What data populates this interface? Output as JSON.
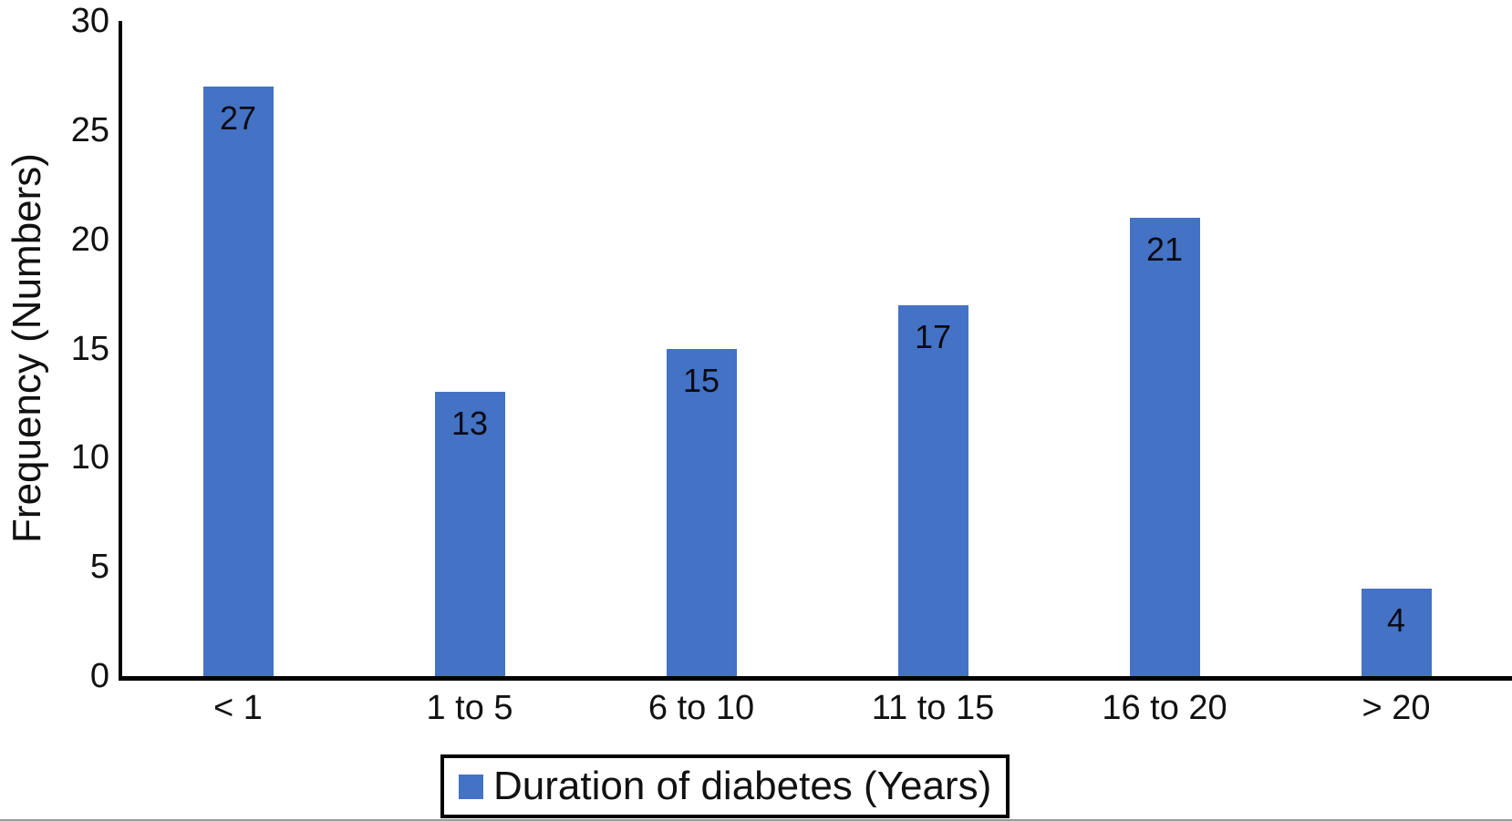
{
  "figure": {
    "background_color": "#ffffff",
    "axis_color": "#000000",
    "text_color": "#111111",
    "bar_color": "#4472C4"
  },
  "chart_data": {
    "type": "bar",
    "title": "",
    "categories": [
      "< 1",
      "1 to 5",
      "6 to 10",
      "11 to 15",
      "16 to 20",
      "> 20"
    ],
    "values": [
      27,
      13,
      15,
      17,
      21,
      4
    ],
    "value_labels_inside_bars": true,
    "xlabel": "",
    "ylabel": "Frequency (Numbers)",
    "ylim": [
      0,
      30
    ],
    "yticks": [
      0,
      5,
      10,
      15,
      20,
      25,
      30
    ],
    "grid": false,
    "legend": {
      "label": "Duration of diabetes (Years)",
      "position": "bottom-center",
      "swatch_color": "#4472C4",
      "boxed": true
    }
  }
}
